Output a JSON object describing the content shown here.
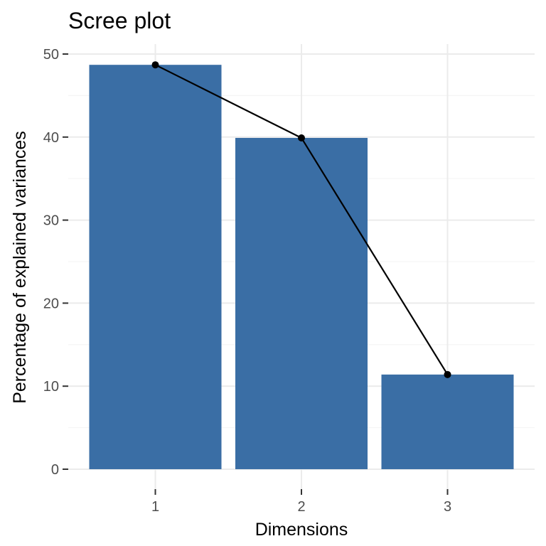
{
  "chart_data": {
    "type": "bar",
    "title": "Scree plot",
    "xlabel": "Dimensions",
    "ylabel": "Percentage of explained variances",
    "categories": [
      "1",
      "2",
      "3"
    ],
    "values": [
      48.7,
      39.9,
      11.4
    ],
    "ylim": [
      -2.4,
      51.2
    ],
    "y_ticks": [
      0,
      10,
      20,
      30,
      40,
      50
    ],
    "y_tick_labels": [
      "0",
      "10",
      "20",
      "30",
      "40",
      "50"
    ],
    "grid": true,
    "bar_color": "#3a6ea5",
    "line_color": "#000000",
    "overlay": "line-with-points"
  }
}
